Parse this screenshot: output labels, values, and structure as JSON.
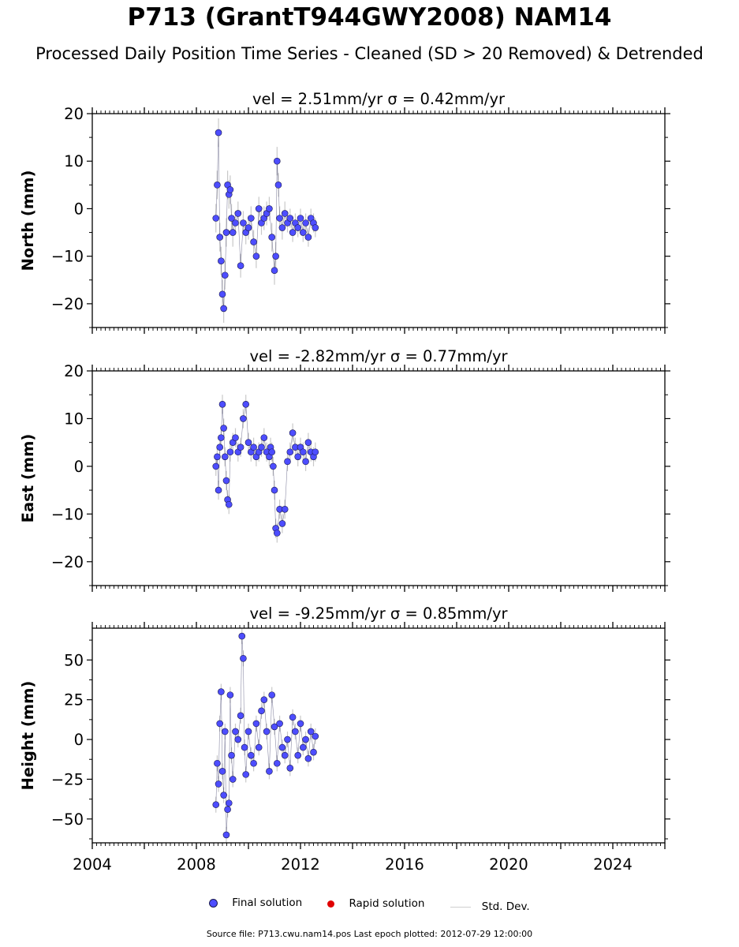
{
  "title": "P713 (GrantT944GWY2008) NAM14",
  "subtitle": "Processed Daily Position Time Series - Cleaned (SD > 20 Removed) & Detrended",
  "legend": {
    "final": "Final solution",
    "rapid": "Rapid solution",
    "std": "Std. Dev."
  },
  "source": "Source file: P713.cwu.nam14.pos  Last epoch plotted: 2012-07-29 12:00:00",
  "colors": {
    "final": "#4d4dff",
    "final_edge": "#1a1a4d",
    "rapid": "#e00000",
    "std": "#c8c8c8"
  },
  "chart_data": [
    {
      "type": "scatter",
      "panel": "north",
      "title": "vel = 2.51mm/yr   σ = 0.42mm/yr",
      "ylabel": "North (mm)",
      "xlim": [
        2004,
        2026
      ],
      "ylim": [
        -25,
        20
      ],
      "yticks": [
        20,
        10,
        0,
        -10,
        -20
      ],
      "tick_labels": [
        "20",
        "10",
        "0",
        "−10",
        "−20"
      ],
      "series": [
        {
          "name": "Final solution",
          "x": [
            2008.75,
            2008.8,
            2008.85,
            2008.9,
            2008.95,
            2009.0,
            2009.05,
            2009.1,
            2009.15,
            2009.2,
            2009.25,
            2009.3,
            2009.35,
            2009.4,
            2009.5,
            2009.6,
            2009.7,
            2009.8,
            2009.9,
            2010.0,
            2010.1,
            2010.2,
            2010.3,
            2010.4,
            2010.5,
            2010.6,
            2010.7,
            2010.8,
            2010.9,
            2011.0,
            2011.05,
            2011.1,
            2011.15,
            2011.2,
            2011.3,
            2011.4,
            2011.5,
            2011.6,
            2011.7,
            2011.8,
            2011.9,
            2012.0,
            2012.1,
            2012.2,
            2012.3,
            2012.4,
            2012.5,
            2012.57
          ],
          "y": [
            -2,
            5,
            16,
            -6,
            -11,
            -18,
            -21,
            -14,
            -5,
            5,
            3,
            4,
            -2,
            -5,
            -3,
            -1,
            -12,
            -3,
            -5,
            -4,
            -2,
            -7,
            -10,
            0,
            -3,
            -2,
            -1,
            0,
            -6,
            -13,
            -10,
            10,
            5,
            -2,
            -4,
            -1,
            -3,
            -2,
            -5,
            -3,
            -4,
            -2,
            -5,
            -3,
            -6,
            -2,
            -3,
            -4
          ],
          "std": [
            3,
            3,
            3,
            3,
            3,
            3,
            3,
            3,
            3,
            3,
            3,
            3,
            3,
            3,
            2.5,
            2.5,
            2.5,
            2.5,
            2.5,
            2.5,
            2.5,
            2.5,
            2.5,
            2.5,
            2.5,
            2.5,
            2.5,
            2.5,
            3,
            3,
            3,
            3,
            2.5,
            2.5,
            2.5,
            2.5,
            2,
            2,
            2,
            2,
            2,
            2,
            2,
            2,
            2,
            2,
            2,
            2
          ]
        },
        {
          "name": "Rapid solution",
          "x": [],
          "y": []
        }
      ]
    },
    {
      "type": "scatter",
      "panel": "east",
      "title": "vel = -2.82mm/yr   σ = 0.77mm/yr",
      "ylabel": "East (mm)",
      "xlim": [
        2004,
        2026
      ],
      "ylim": [
        -25,
        20
      ],
      "yticks": [
        20,
        10,
        0,
        -10,
        -20
      ],
      "tick_labels": [
        "20",
        "10",
        "0",
        "−10",
        "−20"
      ],
      "series": [
        {
          "name": "Final solution",
          "x": [
            2008.75,
            2008.8,
            2008.85,
            2008.9,
            2008.95,
            2009.0,
            2009.05,
            2009.1,
            2009.15,
            2009.2,
            2009.25,
            2009.3,
            2009.4,
            2009.5,
            2009.6,
            2009.7,
            2009.8,
            2009.9,
            2010.0,
            2010.1,
            2010.2,
            2010.3,
            2010.4,
            2010.5,
            2010.6,
            2010.7,
            2010.8,
            2010.85,
            2010.9,
            2010.95,
            2011.0,
            2011.05,
            2011.1,
            2011.2,
            2011.3,
            2011.4,
            2011.5,
            2011.6,
            2011.7,
            2011.8,
            2011.9,
            2012.0,
            2012.1,
            2012.2,
            2012.3,
            2012.4,
            2012.5,
            2012.57
          ],
          "y": [
            0,
            2,
            -5,
            4,
            6,
            13,
            8,
            2,
            -3,
            -7,
            -8,
            3,
            5,
            6,
            3,
            4,
            10,
            13,
            5,
            3,
            4,
            2,
            3,
            4,
            6,
            3,
            2,
            4,
            3,
            0,
            -5,
            -13,
            -14,
            -9,
            -12,
            -9,
            1,
            3,
            7,
            4,
            2,
            4,
            3,
            1,
            5,
            3,
            2,
            3
          ],
          "std": [
            2,
            2,
            2,
            2,
            2,
            2,
            2,
            2,
            2,
            2,
            2,
            2,
            2,
            2,
            2,
            2,
            2,
            2,
            2,
            2,
            2,
            2,
            2,
            2,
            2,
            2,
            2,
            2,
            2,
            2,
            2,
            2,
            2,
            2,
            2,
            2,
            2,
            2,
            2,
            2,
            2,
            2,
            2,
            2,
            2,
            2,
            2,
            2
          ]
        },
        {
          "name": "Rapid solution",
          "x": [],
          "y": []
        }
      ]
    },
    {
      "type": "scatter",
      "panel": "height",
      "title": "vel = -9.25mm/yr   σ = 0.85mm/yr",
      "ylabel": "Height (mm)",
      "xlim": [
        2004,
        2026
      ],
      "ylim": [
        -65,
        70
      ],
      "yticks": [
        50,
        25,
        0,
        -25,
        -50
      ],
      "tick_labels": [
        "50",
        "25",
        "0",
        "−25",
        "−50"
      ],
      "xticks": [
        2004,
        2008,
        2012,
        2016,
        2020,
        2024
      ],
      "xtick_labels": [
        "2004",
        "2008",
        "2012",
        "2016",
        "2020",
        "2024"
      ],
      "series": [
        {
          "name": "Final solution",
          "x": [
            2008.75,
            2008.8,
            2008.85,
            2008.9,
            2008.95,
            2009.0,
            2009.05,
            2009.1,
            2009.15,
            2009.2,
            2009.25,
            2009.3,
            2009.35,
            2009.4,
            2009.5,
            2009.6,
            2009.7,
            2009.75,
            2009.8,
            2009.85,
            2009.9,
            2010.0,
            2010.1,
            2010.2,
            2010.3,
            2010.4,
            2010.5,
            2010.6,
            2010.7,
            2010.8,
            2010.9,
            2011.0,
            2011.1,
            2011.2,
            2011.3,
            2011.4,
            2011.5,
            2011.6,
            2011.7,
            2011.8,
            2011.9,
            2012.0,
            2012.1,
            2012.2,
            2012.3,
            2012.4,
            2012.5,
            2012.57
          ],
          "y": [
            -41,
            -15,
            -28,
            10,
            30,
            -20,
            -35,
            5,
            -60,
            -44,
            -40,
            28,
            -10,
            -25,
            5,
            0,
            15,
            65,
            51,
            -5,
            -22,
            5,
            -10,
            -15,
            10,
            -5,
            18,
            25,
            5,
            -20,
            28,
            8,
            -15,
            10,
            -5,
            -10,
            0,
            -18,
            14,
            5,
            -10,
            10,
            -5,
            0,
            -12,
            5,
            -8,
            2
          ],
          "std": [
            5,
            5,
            5,
            5,
            5,
            5,
            5,
            5,
            5,
            5,
            5,
            5,
            5,
            5,
            5,
            5,
            5,
            5,
            5,
            5,
            5,
            5,
            5,
            5,
            5,
            5,
            5,
            5,
            5,
            5,
            5,
            5,
            5,
            5,
            5,
            5,
            5,
            5,
            5,
            5,
            5,
            5,
            5,
            5,
            5,
            5,
            5,
            5
          ]
        },
        {
          "name": "Rapid solution",
          "x": [],
          "y": []
        }
      ]
    }
  ]
}
